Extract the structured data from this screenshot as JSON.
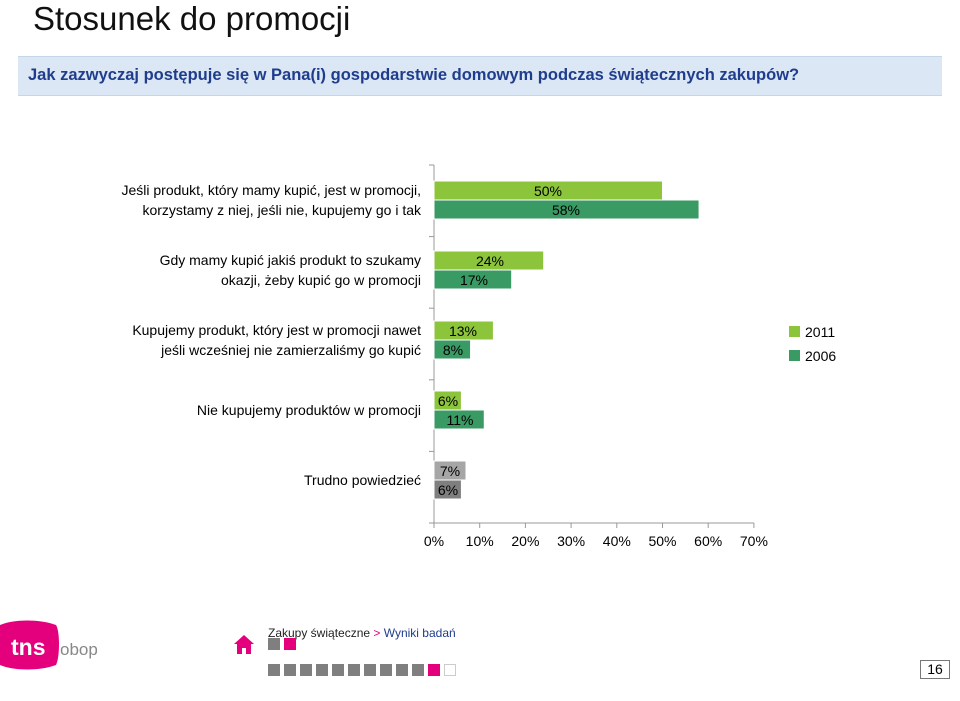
{
  "slide": {
    "title": "Stosunek do promocji",
    "question": "Jak zazwyczaj postępuje się w Pana(i) gospodarstwie domowym podczas świątecznych zakupów?",
    "page_number": "16"
  },
  "footer": {
    "logo_main": "tns",
    "logo_sub": "obop",
    "breadcrumb_section": "Zakupy świąteczne",
    "breadcrumb_separator": ">",
    "breadcrumb_page": "Wyniki badań"
  },
  "colors": {
    "accent_pink": "#e4007d",
    "question_blue": "#1f3d8c",
    "question_bg": "#dbe7f4",
    "nav_gray": "#7f7f7f"
  },
  "chart_data": {
    "type": "bar",
    "orientation": "horizontal",
    "categories": [
      [
        "Jeśli produkt, który mamy kupić, jest w promocji,",
        "korzystamy z niej, jeśli nie, kupujemy go i tak"
      ],
      [
        "Gdy mamy kupić jakiś produkt to szukamy",
        "okazji, żeby kupić go w promocji"
      ],
      [
        "Kupujemy produkt, który jest w promocji nawet",
        "jeśli wcześniej nie zamierzaliśmy go kupić"
      ],
      [
        "Nie kupujemy produktów w promocji"
      ],
      [
        "Trudno powiedzieć"
      ]
    ],
    "series": [
      {
        "name": "2011",
        "values": [
          50,
          24,
          13,
          6,
          7
        ],
        "color": "#8cc43c",
        "last_color": "#a6a6a6"
      },
      {
        "name": "2006",
        "values": [
          58,
          17,
          8,
          11,
          6
        ],
        "color": "#3a9a64",
        "last_color": "#7f7f7f"
      }
    ],
    "x_ticks": [
      "0%",
      "10%",
      "20%",
      "30%",
      "40%",
      "50%",
      "60%",
      "70%"
    ],
    "xlim": [
      0,
      70
    ],
    "value_suffix": "%",
    "legend_position": "right",
    "grid": false
  }
}
